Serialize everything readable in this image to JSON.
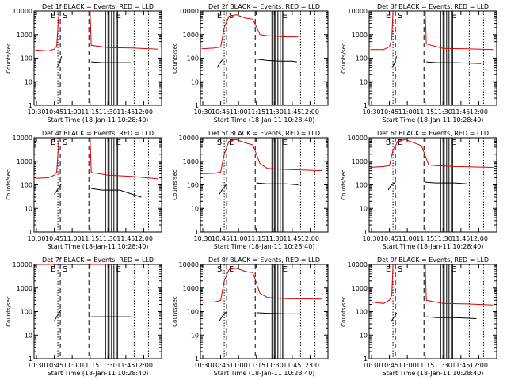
{
  "figure": {
    "ylabel": "Counts/sec",
    "xlabel": "Start Time (18-Jan-11 10:28:40)"
  },
  "chart_data": {
    "type": "line",
    "layout": "3x3 grid of panels",
    "yscale": "log",
    "ylim": [
      1,
      10000
    ],
    "yticks": [
      "1",
      "10",
      "100",
      "1000",
      "10000"
    ],
    "xticks": [
      "10:30",
      "10:45",
      "11:00",
      "11:15",
      "11:30",
      "11:45",
      "12:00"
    ],
    "xlim_minutes": [
      28,
      135
    ],
    "x_units": "minutes after 10:00",
    "colors": {
      "events": "#000000",
      "lld": "#dd0000"
    },
    "panels": [
      {
        "title": "Det 1f BLACK = Events, RED = LLD",
        "markers": [
          "E",
          "S",
          "E"
        ],
        "lld": [
          [
            29,
            220
          ],
          [
            40,
            200
          ],
          [
            45,
            240
          ],
          [
            47,
            330
          ],
          [
            48,
            2000
          ],
          [
            49,
            10000
          ]
        ],
        "lld2": [
          [
            75,
            10000
          ],
          [
            76,
            350
          ],
          [
            90,
            280
          ],
          [
            110,
            270
          ],
          [
            132,
            240
          ]
        ],
        "events": [
          [
            47,
            40
          ],
          [
            49,
            55
          ],
          [
            50,
            80
          ],
          [
            51,
            120
          ]
        ],
        "events2": [
          [
            76,
            70
          ],
          [
            85,
            65
          ],
          [
            100,
            65
          ],
          [
            109,
            65
          ]
        ]
      },
      {
        "title": "Det 2f BLACK = Events, RED = LLD",
        "markers": [
          "E",
          "S",
          "E"
        ],
        "lld": [
          [
            29,
            250
          ],
          [
            40,
            270
          ],
          [
            45,
            300
          ],
          [
            48,
            2000
          ],
          [
            52,
            6000
          ],
          [
            58,
            7000
          ],
          [
            66,
            5000
          ],
          [
            72,
            4500
          ],
          [
            78,
            1000
          ],
          [
            84,
            900
          ],
          [
            100,
            800
          ],
          [
            110,
            800
          ]
        ],
        "events": [
          [
            42,
            40
          ],
          [
            44,
            60
          ],
          [
            46,
            80
          ],
          [
            48,
            95
          ]
        ],
        "events2": [
          [
            73,
            95
          ],
          [
            84,
            80
          ],
          [
            95,
            75
          ],
          [
            105,
            75
          ],
          [
            109,
            70
          ]
        ]
      },
      {
        "title": "Det 3f BLACK = Events, RED = LLD",
        "markers": [
          "E",
          "S",
          "E"
        ],
        "lld": [
          [
            29,
            230
          ],
          [
            40,
            230
          ],
          [
            45,
            300
          ],
          [
            47,
            700
          ],
          [
            48,
            10000
          ]
        ],
        "lld2": [
          [
            75,
            10000
          ],
          [
            76,
            400
          ],
          [
            90,
            260
          ],
          [
            110,
            250
          ],
          [
            132,
            230
          ]
        ],
        "events": [
          [
            47,
            40
          ],
          [
            49,
            55
          ],
          [
            50,
            80
          ],
          [
            51,
            120
          ]
        ],
        "events2": [
          [
            76,
            70
          ],
          [
            85,
            65
          ],
          [
            100,
            65
          ],
          [
            122,
            60
          ]
        ]
      },
      {
        "title": "Det 4f BLACK = Events, RED = LLD",
        "markers": [
          "E",
          "S",
          "E"
        ],
        "lld": [
          [
            29,
            190
          ],
          [
            40,
            200
          ],
          [
            45,
            260
          ],
          [
            47,
            350
          ],
          [
            48,
            2000
          ],
          [
            49,
            10000
          ]
        ],
        "lld2": [
          [
            75,
            10000
          ],
          [
            76,
            340
          ],
          [
            90,
            260
          ],
          [
            110,
            230
          ],
          [
            132,
            180
          ]
        ],
        "events": [
          [
            45,
            40
          ],
          [
            47,
            55
          ],
          [
            49,
            80
          ],
          [
            51,
            110
          ]
        ],
        "events2": [
          [
            76,
            70
          ],
          [
            85,
            60
          ],
          [
            100,
            60
          ],
          [
            118,
            30
          ]
        ]
      },
      {
        "title": "Det 5f BLACK = Events, RED = LLD",
        "markers": [
          "S",
          "E",
          "E"
        ],
        "lld": [
          [
            29,
            300
          ],
          [
            40,
            310
          ],
          [
            45,
            350
          ],
          [
            48,
            2000
          ],
          [
            52,
            7000
          ],
          [
            58,
            8500
          ],
          [
            66,
            6000
          ],
          [
            72,
            5000
          ],
          [
            78,
            800
          ],
          [
            84,
            500
          ],
          [
            100,
            450
          ],
          [
            130,
            400
          ]
        ],
        "events": [
          [
            44,
            40
          ],
          [
            46,
            60
          ],
          [
            48,
            80
          ],
          [
            50,
            110
          ]
        ],
        "events2": [
          [
            75,
            120
          ],
          [
            84,
            110
          ],
          [
            100,
            110
          ],
          [
            110,
            100
          ]
        ]
      },
      {
        "title": "Det 6f BLACK = Events, RED = LLD",
        "markers": [
          "S",
          "E",
          "E"
        ],
        "lld": [
          [
            29,
            550
          ],
          [
            40,
            600
          ],
          [
            45,
            650
          ],
          [
            48,
            3000
          ],
          [
            52,
            7000
          ],
          [
            58,
            8500
          ],
          [
            66,
            6000
          ],
          [
            72,
            4500
          ],
          [
            78,
            700
          ],
          [
            84,
            650
          ],
          [
            100,
            600
          ],
          [
            132,
            550
          ]
        ],
        "events": [
          [
            44,
            60
          ],
          [
            46,
            90
          ],
          [
            48,
            110
          ],
          [
            50,
            130
          ]
        ],
        "events2": [
          [
            75,
            130
          ],
          [
            84,
            120
          ],
          [
            100,
            120
          ],
          [
            110,
            110
          ]
        ]
      },
      {
        "title": "Det 7f BLACK = Events, RED = LLD",
        "markers": [
          "E",
          "S",
          "E"
        ],
        "lld": [
          [
            29,
            10000
          ],
          [
            47,
            10000
          ]
        ],
        "lld2": [
          [
            75,
            10000
          ],
          [
            90,
            10000
          ]
        ],
        "events": [
          [
            45,
            40
          ],
          [
            47,
            60
          ],
          [
            49,
            90
          ],
          [
            51,
            120
          ]
        ],
        "events2": [
          [
            76,
            60
          ],
          [
            85,
            60
          ],
          [
            100,
            60
          ],
          [
            109,
            60
          ]
        ]
      },
      {
        "title": "Det 8f BLACK = Events, RED = LLD",
        "markers": [
          "S",
          "E",
          "E"
        ],
        "lld": [
          [
            29,
            250
          ],
          [
            40,
            260
          ],
          [
            45,
            300
          ],
          [
            48,
            2000
          ],
          [
            52,
            6000
          ],
          [
            58,
            7000
          ],
          [
            66,
            5000
          ],
          [
            72,
            4500
          ],
          [
            78,
            600
          ],
          [
            84,
            400
          ],
          [
            100,
            350
          ],
          [
            130,
            340
          ]
        ],
        "events": [
          [
            44,
            40
          ],
          [
            46,
            60
          ],
          [
            48,
            80
          ],
          [
            50,
            100
          ]
        ],
        "events2": [
          [
            75,
            90
          ],
          [
            84,
            85
          ],
          [
            100,
            80
          ],
          [
            110,
            80
          ]
        ]
      },
      {
        "title": "Det 9f BLACK = Events, RED = LLD",
        "markers": [
          "E",
          "S",
          "E"
        ],
        "lld": [
          [
            29,
            260
          ],
          [
            40,
            220
          ],
          [
            45,
            300
          ],
          [
            47,
            500
          ],
          [
            48,
            10000
          ]
        ],
        "lld2": [
          [
            75,
            10000
          ],
          [
            76,
            300
          ],
          [
            90,
            220
          ],
          [
            110,
            210
          ],
          [
            132,
            190
          ]
        ],
        "events": [
          [
            46,
            35
          ],
          [
            48,
            50
          ],
          [
            50,
            70
          ],
          [
            51,
            90
          ]
        ],
        "events2": [
          [
            76,
            60
          ],
          [
            85,
            55
          ],
          [
            100,
            55
          ],
          [
            118,
            50
          ]
        ]
      }
    ]
  }
}
